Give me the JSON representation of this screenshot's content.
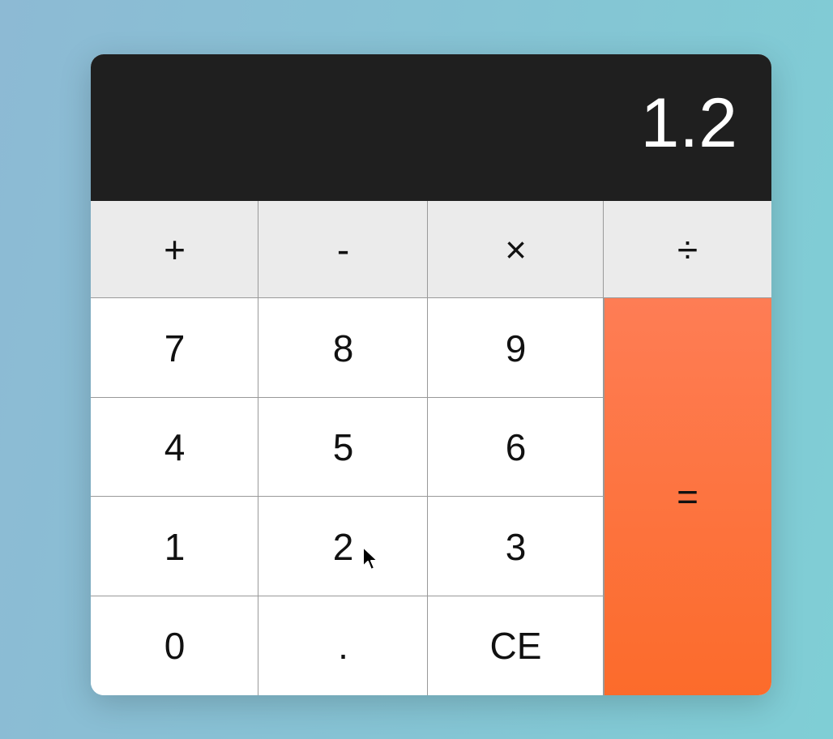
{
  "display": {
    "value": "1.2"
  },
  "operators": [
    "+",
    "-",
    "×",
    "÷"
  ],
  "digits_rows": [
    [
      "7",
      "8",
      "9"
    ],
    [
      "4",
      "5",
      "6"
    ],
    [
      "1",
      "2",
      "3"
    ],
    [
      "0",
      ".",
      "CE"
    ]
  ],
  "equals_label": "=",
  "colors": {
    "display_bg": "#1f1f1f",
    "operator_bg": "#ebebeb",
    "equals_bg": "#fc6b2b",
    "key_bg": "#ffffff"
  },
  "cursor": {
    "icon": "arrow-pointer-icon"
  }
}
